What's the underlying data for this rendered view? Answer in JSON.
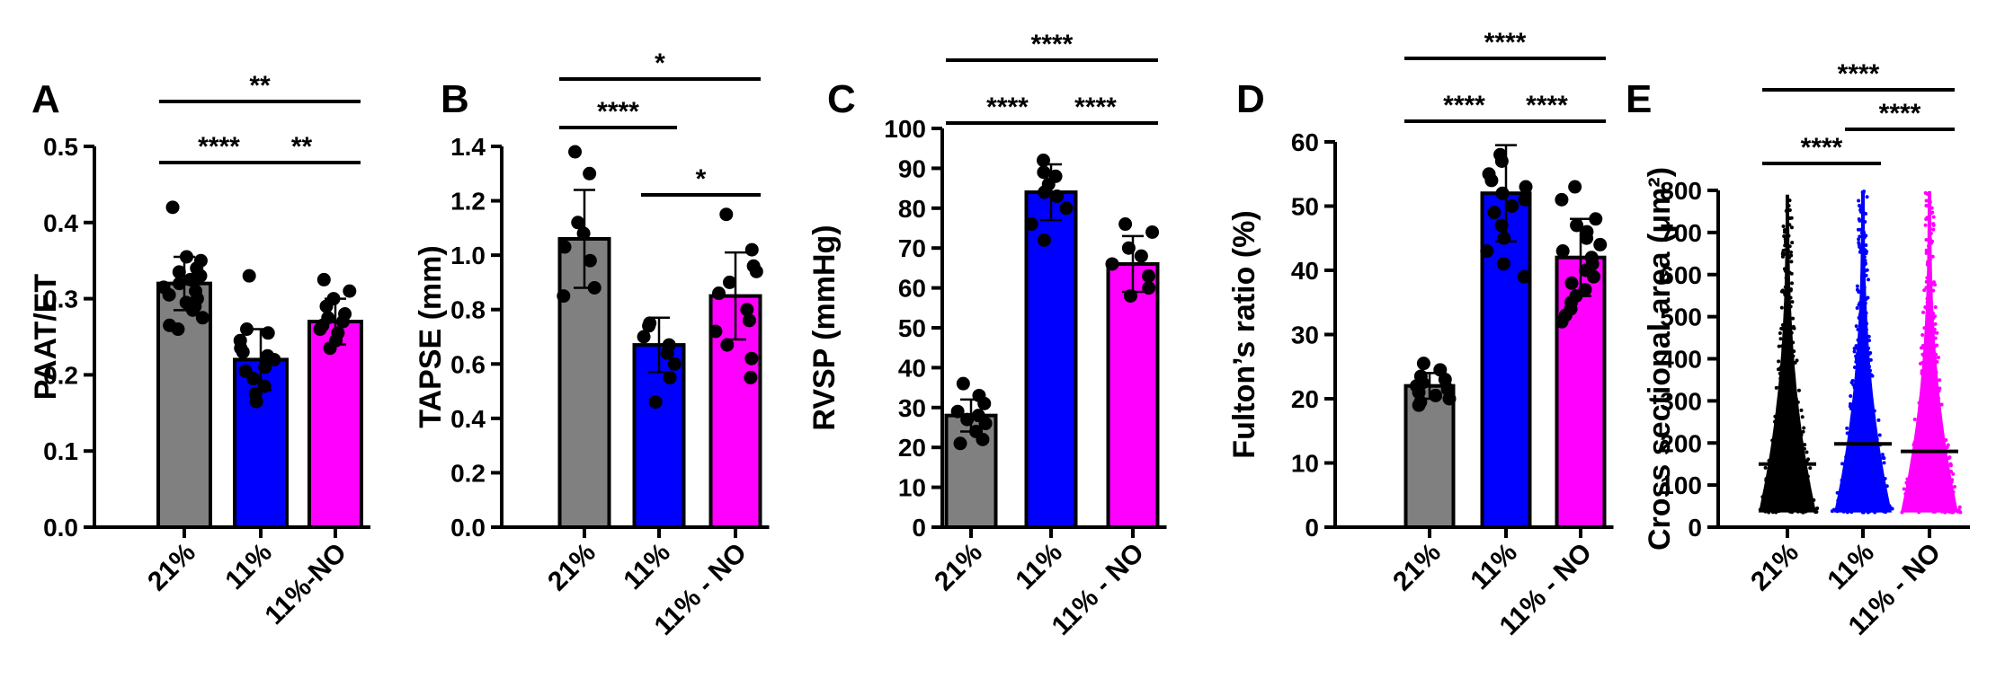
{
  "chart_data": [
    {
      "panel": "A",
      "type": "bar",
      "ylabel": "PAAT/ET",
      "ylim": [
        0,
        0.5
      ],
      "yticks": [
        0.0,
        0.1,
        0.2,
        0.3,
        0.4,
        0.5
      ],
      "tick_decimals": 1,
      "categories": [
        "21%",
        "11%",
        "11%-NO"
      ],
      "colors": [
        "#808080",
        "#0000ff",
        "#ff00ff"
      ],
      "means": [
        0.32,
        0.22,
        0.27
      ],
      "sd": [
        0.035,
        0.04,
        0.03
      ],
      "points": [
        [
          0.42,
          0.355,
          0.35,
          0.34,
          0.335,
          0.33,
          0.325,
          0.32,
          0.315,
          0.31,
          0.305,
          0.3,
          0.295,
          0.29,
          0.285,
          0.275,
          0.265,
          0.26
        ],
        [
          0.33,
          0.26,
          0.255,
          0.245,
          0.235,
          0.23,
          0.225,
          0.22,
          0.21,
          0.205,
          0.195,
          0.185,
          0.175,
          0.165
        ],
        [
          0.325,
          0.31,
          0.3,
          0.29,
          0.28,
          0.275,
          0.27,
          0.265,
          0.26,
          0.255,
          0.245,
          0.235
        ]
      ],
      "significance": [
        {
          "from": 0,
          "to": 1,
          "label": "****"
        },
        {
          "from": 1,
          "to": 2,
          "label": "**"
        },
        {
          "from": 0,
          "to": 2,
          "label": "**"
        }
      ]
    },
    {
      "panel": "B",
      "type": "bar",
      "ylabel": "TAPSE (mm)",
      "ylim": [
        0,
        1.4
      ],
      "yticks": [
        0.0,
        0.2,
        0.4,
        0.6,
        0.8,
        1.0,
        1.2,
        1.4
      ],
      "tick_decimals": 1,
      "categories": [
        "21%",
        "11%",
        "11% - NO"
      ],
      "colors": [
        "#808080",
        "#0000ff",
        "#ff00ff"
      ],
      "means": [
        1.06,
        0.67,
        0.85
      ],
      "sd": [
        0.18,
        0.1,
        0.16
      ],
      "points": [
        [
          1.38,
          1.3,
          1.12,
          1.08,
          1.03,
          0.98,
          0.88,
          0.85
        ],
        [
          0.75,
          0.74,
          0.7,
          0.67,
          0.64,
          0.6,
          0.55,
          0.46
        ],
        [
          1.15,
          1.02,
          0.96,
          0.94,
          0.9,
          0.86,
          0.8,
          0.76,
          0.72,
          0.67,
          0.62,
          0.55
        ]
      ],
      "significance": [
        {
          "from": 0,
          "to": 1,
          "label": "****"
        },
        {
          "from": 1,
          "to": 2,
          "label": "*"
        },
        {
          "from": 0,
          "to": 2,
          "label": "*"
        }
      ]
    },
    {
      "panel": "C",
      "type": "bar",
      "ylabel": "RVSP (mmHg)",
      "ylim": [
        0,
        100
      ],
      "yticks": [
        0,
        10,
        20,
        30,
        40,
        50,
        60,
        70,
        80,
        90,
        100
      ],
      "tick_decimals": 0,
      "categories": [
        "21%",
        "11%",
        "11% - NO"
      ],
      "colors": [
        "#808080",
        "#0000ff",
        "#ff00ff"
      ],
      "means": [
        28,
        84,
        66
      ],
      "sd": [
        4,
        7,
        7
      ],
      "points": [
        [
          36,
          33,
          31,
          29,
          28,
          27,
          26,
          24,
          22,
          21
        ],
        [
          92,
          89,
          88,
          86,
          84,
          83,
          80,
          76,
          72
        ],
        [
          76,
          74,
          70,
          68,
          66,
          63,
          60,
          58
        ]
      ],
      "significance": [
        {
          "from": 0,
          "to": 1,
          "label": "****"
        },
        {
          "from": 1,
          "to": 2,
          "label": "****"
        },
        {
          "from": 0,
          "to": 2,
          "label": "****"
        }
      ]
    },
    {
      "panel": "D",
      "type": "bar",
      "ylabel": "Fulton’s ratio (%)",
      "ylim": [
        0,
        60
      ],
      "yticks": [
        0,
        10,
        20,
        30,
        40,
        50,
        60
      ],
      "tick_decimals": 0,
      "categories": [
        "21%",
        "11%",
        "11% - NO"
      ],
      "colors": [
        "#808080",
        "#0000ff",
        "#ff00ff"
      ],
      "means": [
        22,
        52,
        42
      ],
      "sd": [
        2,
        7.5,
        6
      ],
      "points": [
        [
          25.5,
          24.5,
          23.5,
          23,
          22.5,
          22,
          21.5,
          21,
          20.5,
          20,
          19.5,
          19
        ],
        [
          58,
          57,
          55,
          54,
          53,
          52,
          51,
          50,
          49,
          47,
          45,
          43,
          41,
          39
        ],
        [
          53,
          51,
          48,
          47,
          46,
          45,
          44,
          43,
          42,
          41,
          40,
          39,
          38,
          37,
          36,
          35,
          34,
          33,
          32
        ]
      ],
      "significance": [
        {
          "from": 0,
          "to": 1,
          "label": "****"
        },
        {
          "from": 1,
          "to": 2,
          "label": "****"
        },
        {
          "from": 0,
          "to": 2,
          "label": "****"
        }
      ]
    },
    {
      "panel": "E",
      "type": "scatter",
      "ylabel": "Cross sectional area (μm²)",
      "ylim": [
        0,
        800
      ],
      "yticks": [
        0,
        100,
        200,
        300,
        400,
        500,
        600,
        700,
        800
      ],
      "tick_decimals": 0,
      "categories": [
        "21%",
        "11%",
        "11% - NO"
      ],
      "colors": [
        "#000000",
        "#0000ff",
        "#ff00ff"
      ],
      "medians": [
        150,
        198,
        180
      ],
      "range": [
        [
          35,
          790
        ],
        [
          35,
          798
        ],
        [
          35,
          798
        ]
      ],
      "significance": [
        {
          "from": 0,
          "to": 1,
          "label": "****"
        },
        {
          "from": 1,
          "to": 2,
          "label": "****"
        },
        {
          "from": 0,
          "to": 2,
          "label": "****"
        }
      ]
    }
  ]
}
